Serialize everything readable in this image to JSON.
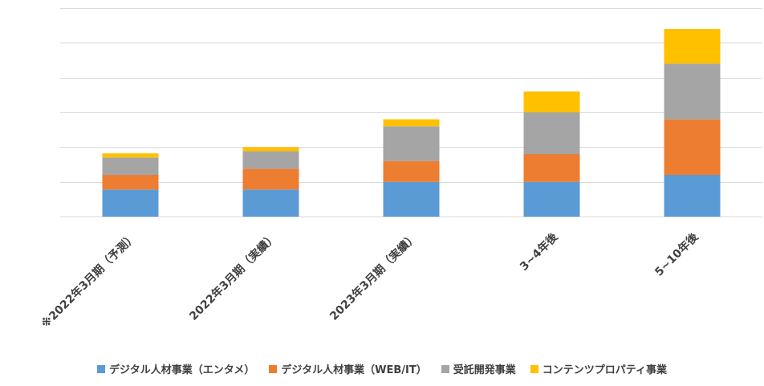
{
  "chart_data": {
    "type": "bar",
    "stacked": true,
    "title": "",
    "xlabel": "",
    "ylabel": "",
    "ylim": [
      0,
      6
    ],
    "y_gridlines": [
      1,
      2,
      3,
      4,
      5,
      6
    ],
    "y_tick_labels_shown": false,
    "grid": true,
    "legend_position": "bottom",
    "categories": [
      "※2022年3月期（予測）",
      "2022年3月期（実績）",
      "2023年3月期（実績）",
      "3~4年後",
      "5~10年後"
    ],
    "series": [
      {
        "name": "デジタル人材事業（エンタメ）",
        "color": "#5b9bd5",
        "values": [
          0.78,
          0.78,
          1.0,
          1.0,
          1.2
        ]
      },
      {
        "name": "デジタル人材事業（WEB/IT）",
        "color": "#ed7d31",
        "values": [
          0.42,
          0.6,
          0.6,
          0.8,
          1.6
        ]
      },
      {
        "name": "受託開発事業",
        "color": "#a5a5a5",
        "values": [
          0.5,
          0.5,
          1.0,
          1.2,
          1.6
        ]
      },
      {
        "name": "コンテンツプロパティ事業",
        "color": "#ffc000",
        "values": [
          0.12,
          0.12,
          0.2,
          0.6,
          1.0
        ]
      }
    ]
  }
}
